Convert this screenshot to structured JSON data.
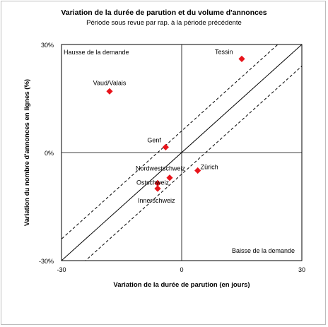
{
  "chart_data": {
    "type": "scatter",
    "title": "Variation de la durée de parution et du volume d'annonces",
    "subtitle": "Période sous revue par rap. à la période précédente",
    "xlabel": "Variation de la durée de parution (en  jours)",
    "ylabel": "Variation du nombre d'annonces en lignes (%)",
    "xlim": [
      -30,
      30
    ],
    "ylim": [
      -30,
      30
    ],
    "x_ticks": [
      {
        "value": -30,
        "label": "-30"
      },
      {
        "value": 0,
        "label": "0"
      },
      {
        "value": 30,
        "label": "30"
      }
    ],
    "y_ticks": [
      {
        "value": 30,
        "label": "30%"
      },
      {
        "value": 0,
        "label": "0%"
      },
      {
        "value": -30,
        "label": "-30%"
      }
    ],
    "grid": false,
    "annotations": [
      {
        "text": "Hausse de la demande",
        "corner": "top-left"
      },
      {
        "text": "Baisse de la demande",
        "corner": "bottom-right"
      }
    ],
    "reference_lines": [
      {
        "style": "solid",
        "intercept": 0
      },
      {
        "style": "dashed",
        "intercept": 6
      },
      {
        "style": "dashed",
        "intercept": -6
      }
    ],
    "marker_color": "#e8141b",
    "points": [
      {
        "label": "Tessin",
        "x": 15,
        "y": 26
      },
      {
        "label": "Vaud/Valais",
        "x": -18,
        "y": 17
      },
      {
        "label": "Genf",
        "x": -4,
        "y": 1.5
      },
      {
        "label": "Zürich",
        "x": 4,
        "y": -5
      },
      {
        "label": "Nordwestschweiz",
        "x": -3,
        "y": -7
      },
      {
        "label": "Ostschweiz",
        "x": -6,
        "y": -8.5
      },
      {
        "label": "Innerschweiz",
        "x": -6,
        "y": -10
      }
    ]
  }
}
